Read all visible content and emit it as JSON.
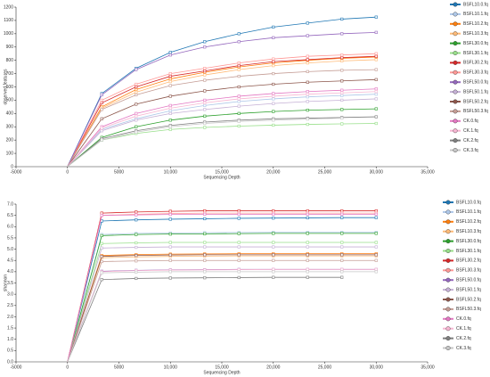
{
  "chart_data": [
    {
      "type": "line",
      "x_label": "Sequencing Depth",
      "y_label": "observed features",
      "x": [
        1,
        3333,
        6666,
        10000,
        13333,
        16666,
        20000,
        23333,
        26666,
        30000
      ],
      "xlim": [
        -5000,
        35000
      ],
      "xticks": [
        -5000,
        0,
        5000,
        {
          "value": 10000,
          "label": "10,000"
        },
        {
          "value": 15000,
          "label": "15,000"
        },
        {
          "value": 20000,
          "label": "20,000"
        },
        {
          "value": 25000,
          "label": "25,000"
        },
        {
          "value": 30000,
          "label": "30,000"
        },
        {
          "value": 35000,
          "label": "35,000"
        }
      ],
      "ylim": [
        0,
        1200
      ],
      "yticks": [
        0,
        100,
        200,
        300,
        400,
        500,
        600,
        700,
        800,
        900,
        1000,
        1100,
        1200
      ],
      "series": [
        {
          "name": "BSFL10.0.fq",
          "color": "#1f77b4",
          "values": [
            1,
            550,
            740,
            860,
            940,
            1000,
            1050,
            1080,
            1110,
            1125
          ]
        },
        {
          "name": "BSFL10.1.fq",
          "color": "#aec7e8",
          "values": [
            1,
            280,
            360,
            420,
            460,
            490,
            510,
            525,
            535,
            545
          ]
        },
        {
          "name": "BSFL10.2.fq",
          "color": "#ff7f0e",
          "values": [
            1,
            450,
            580,
            660,
            710,
            750,
            780,
            800,
            815,
            825
          ]
        },
        {
          "name": "BSFL10.3.fq",
          "color": "#ffbb78",
          "values": [
            1,
            440,
            560,
            640,
            690,
            730,
            760,
            780,
            795,
            805
          ]
        },
        {
          "name": "BSFL30.0.fq",
          "color": "#2ca02c",
          "values": [
            1,
            220,
            300,
            350,
            380,
            400,
            415,
            425,
            430,
            435
          ]
        },
        {
          "name": "BSFL30.1.fq",
          "color": "#98df8a",
          "values": [
            1,
            200,
            250,
            280,
            295,
            305,
            312,
            318,
            322,
            325
          ]
        },
        {
          "name": "BSFL30.2.fq",
          "color": "#d62728",
          "values": [
            1,
            480,
            600,
            680,
            720,
            760,
            790,
            805,
            820,
            830
          ]
        },
        {
          "name": "BSFL30.3.fq",
          "color": "#ff9896",
          "values": [
            1,
            500,
            620,
            700,
            740,
            780,
            810,
            830,
            840,
            850
          ]
        },
        {
          "name": "BSFL50.0.fq",
          "color": "#9467bd",
          "values": [
            1,
            540,
            730,
            840,
            900,
            940,
            970,
            985,
            1000,
            1010
          ]
        },
        {
          "name": "BSFL50.1.fq",
          "color": "#c5b0d5",
          "values": [
            1,
            270,
            350,
            400,
            430,
            455,
            475,
            490,
            500,
            510
          ]
        },
        {
          "name": "BSFL50.2.fq",
          "color": "#8c564b",
          "values": [
            1,
            360,
            470,
            530,
            570,
            600,
            620,
            635,
            645,
            655
          ]
        },
        {
          "name": "BSFL50.3.fq",
          "color": "#c49c94",
          "values": [
            1,
            430,
            540,
            610,
            650,
            680,
            700,
            715,
            725,
            730
          ]
        },
        {
          "name": "CK.0.fq",
          "color": "#e377c2",
          "values": [
            1,
            300,
            400,
            460,
            500,
            530,
            550,
            565,
            575,
            585
          ]
        },
        {
          "name": "CK.1.fq",
          "color": "#f7b6d2",
          "values": [
            1,
            290,
            380,
            440,
            480,
            510,
            530,
            545,
            555,
            565
          ]
        },
        {
          "name": "CK.2.fq",
          "color": "#7f7f7f",
          "values": [
            1,
            210,
            270,
            310,
            335,
            350,
            360,
            365,
            370,
            375
          ]
        },
        {
          "name": "CK.3.fq",
          "color": "#c7c7c7",
          "values": [
            1,
            200,
            260,
            300,
            325,
            340,
            350,
            358,
            365,
            null
          ]
        }
      ]
    },
    {
      "type": "line",
      "x_label": "Sequencing Depth",
      "y_label": "shannon",
      "x": [
        1,
        3333,
        6666,
        10000,
        13333,
        16666,
        20000,
        23333,
        26666,
        30000
      ],
      "xlim": [
        -5000,
        35000
      ],
      "xticks": [
        -5000,
        0,
        5000,
        {
          "value": 10000,
          "label": "10,000"
        },
        {
          "value": 15000,
          "label": "15,000"
        },
        {
          "value": 20000,
          "label": "20,000"
        },
        {
          "value": 25000,
          "label": "25,000"
        },
        {
          "value": 30000,
          "label": "30,000"
        },
        {
          "value": 35000,
          "label": "35,000"
        }
      ],
      "ylim": [
        0,
        7
      ],
      "yticks": [
        {
          "value": 0,
          "label": "0.0"
        },
        0.5,
        {
          "value": 1,
          "label": "1.0"
        },
        1.5,
        {
          "value": 2,
          "label": "2.0"
        },
        2.5,
        {
          "value": 3,
          "label": "3.0"
        },
        3.5,
        {
          "value": 4,
          "label": "4.0"
        },
        4.5,
        {
          "value": 5,
          "label": "5.0"
        },
        5.5,
        {
          "value": 6,
          "label": "6.0"
        },
        6.5,
        {
          "value": 7,
          "label": "7.0"
        }
      ],
      "series": [
        {
          "name": "BSFL10.0.fq",
          "color": "#1f77b4",
          "values": [
            0,
            6.25,
            6.3,
            6.33,
            6.35,
            6.37,
            6.38,
            6.39,
            6.4,
            6.4
          ]
        },
        {
          "name": "BSFL10.1.fq",
          "color": "#aec7e8",
          "values": [
            0,
            5.65,
            5.7,
            5.72,
            5.73,
            5.74,
            5.75,
            5.75,
            5.75,
            5.75
          ]
        },
        {
          "name": "BSFL10.2.fq",
          "color": "#ff7f0e",
          "values": [
            0,
            4.72,
            4.76,
            4.78,
            4.79,
            4.8,
            4.8,
            4.8,
            4.8,
            4.8
          ]
        },
        {
          "name": "BSFL10.3.fq",
          "color": "#ffbb78",
          "values": [
            0,
            4.62,
            4.66,
            4.68,
            4.69,
            4.7,
            4.7,
            4.7,
            4.7,
            4.7
          ]
        },
        {
          "name": "BSFL30.0.fq",
          "color": "#2ca02c",
          "values": [
            0,
            5.6,
            5.65,
            5.67,
            5.68,
            5.69,
            5.7,
            5.7,
            5.7,
            5.7
          ]
        },
        {
          "name": "BSFL30.1.fq",
          "color": "#98df8a",
          "values": [
            0,
            5.25,
            5.28,
            5.3,
            5.3,
            5.3,
            5.3,
            5.3,
            5.3,
            5.3
          ]
        },
        {
          "name": "BSFL30.2.fq",
          "color": "#d62728",
          "values": [
            0,
            6.6,
            6.65,
            6.68,
            6.7,
            6.7,
            6.7,
            6.7,
            6.7,
            6.7
          ]
        },
        {
          "name": "BSFL30.3.fq",
          "color": "#ff9896",
          "values": [
            0,
            6.5,
            6.55,
            6.58,
            6.6,
            6.6,
            6.6,
            6.6,
            6.6,
            6.6
          ]
        },
        {
          "name": "BSFL50.0.fq",
          "color": "#9467bd",
          "values": [
            0,
            4.02,
            4.06,
            4.08,
            4.09,
            4.1,
            4.1,
            4.1,
            4.1,
            4.1
          ]
        },
        {
          "name": "BSFL50.1.fq",
          "color": "#c5b0d5",
          "values": [
            0,
            5.05,
            5.08,
            5.1,
            5.1,
            5.1,
            5.1,
            5.1,
            5.1,
            5.1
          ]
        },
        {
          "name": "BSFL50.2.fq",
          "color": "#8c564b",
          "values": [
            0,
            4.68,
            4.72,
            4.74,
            4.75,
            4.75,
            4.75,
            4.75,
            4.75,
            4.75
          ]
        },
        {
          "name": "BSFL50.3.fq",
          "color": "#c49c94",
          "values": [
            0,
            4.45,
            4.48,
            4.5,
            4.5,
            4.5,
            4.5,
            4.5,
            4.5,
            4.5
          ]
        },
        {
          "name": "CK.0.fq",
          "color": "#e377c2",
          "values": [
            0,
            6.5,
            6.52,
            6.54,
            6.55,
            6.55,
            6.55,
            6.55,
            6.55,
            6.55
          ]
        },
        {
          "name": "CK.1.fq",
          "color": "#f7b6d2",
          "values": [
            0,
            4.0,
            4.05,
            4.07,
            4.08,
            4.09,
            4.1,
            4.1,
            4.1,
            4.1
          ]
        },
        {
          "name": "CK.2.fq",
          "color": "#7f7f7f",
          "values": [
            0,
            3.65,
            3.7,
            3.72,
            3.73,
            3.74,
            3.75,
            3.75,
            3.75,
            null
          ]
        },
        {
          "name": "CK.3.fq",
          "color": "#c7c7c7",
          "values": [
            0,
            3.95,
            3.98,
            4.0,
            4.0,
            4.0,
            4.0,
            4.0,
            4.0,
            4.0
          ]
        }
      ]
    }
  ]
}
